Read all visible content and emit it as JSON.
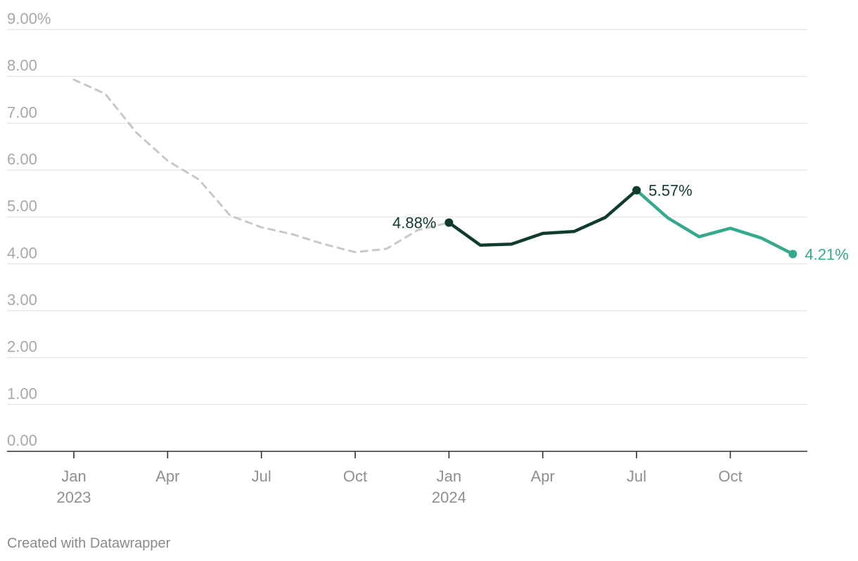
{
  "chart_data": {
    "type": "line",
    "ylim": [
      0,
      9
    ],
    "yticks": [
      {
        "value": 9,
        "label": "9.00%"
      },
      {
        "value": 8,
        "label": "8.00"
      },
      {
        "value": 7,
        "label": "7.00"
      },
      {
        "value": 6,
        "label": "6.00"
      },
      {
        "value": 5,
        "label": "5.00"
      },
      {
        "value": 4,
        "label": "4.00"
      },
      {
        "value": 3,
        "label": "3.00"
      },
      {
        "value": 2,
        "label": "2.00"
      },
      {
        "value": 1,
        "label": "1.00"
      },
      {
        "value": 0,
        "label": "0.00"
      }
    ],
    "xticks": [
      {
        "x": "2023-01",
        "month": "Jan",
        "year": "2023"
      },
      {
        "x": "2023-04",
        "month": "Apr",
        "year": ""
      },
      {
        "x": "2023-07",
        "month": "Jul",
        "year": ""
      },
      {
        "x": "2023-10",
        "month": "Oct",
        "year": ""
      },
      {
        "x": "2024-01",
        "month": "Jan",
        "year": "2024"
      },
      {
        "x": "2024-04",
        "month": "Apr",
        "year": ""
      },
      {
        "x": "2024-07",
        "month": "Jul",
        "year": ""
      },
      {
        "x": "2024-10",
        "month": "Oct",
        "year": ""
      }
    ],
    "grid": true,
    "series": [
      {
        "style": "dashed",
        "color": "#c8c8c8",
        "points": [
          {
            "x": "2023-01",
            "y": 7.93
          },
          {
            "x": "2023-02",
            "y": 7.63
          },
          {
            "x": "2023-03",
            "y": 6.8
          },
          {
            "x": "2023-04",
            "y": 6.2
          },
          {
            "x": "2023-05",
            "y": 5.8
          },
          {
            "x": "2023-06",
            "y": 5.03
          },
          {
            "x": "2023-07",
            "y": 4.78
          },
          {
            "x": "2023-08",
            "y": 4.63
          },
          {
            "x": "2023-09",
            "y": 4.42
          },
          {
            "x": "2023-10",
            "y": 4.25
          },
          {
            "x": "2023-11",
            "y": 4.32
          },
          {
            "x": "2023-12",
            "y": 4.72
          },
          {
            "x": "2024-01",
            "y": 4.88
          }
        ]
      },
      {
        "style": "solid",
        "color": "#0f3d2a",
        "points": [
          {
            "x": "2024-01",
            "y": 4.88
          },
          {
            "x": "2024-02",
            "y": 4.4
          },
          {
            "x": "2024-03",
            "y": 4.42
          },
          {
            "x": "2024-04",
            "y": 4.65
          },
          {
            "x": "2024-05",
            "y": 4.69
          },
          {
            "x": "2024-06",
            "y": 4.99
          },
          {
            "x": "2024-07",
            "y": 5.57
          }
        ]
      },
      {
        "style": "solid",
        "color": "#35a98d",
        "points": [
          {
            "x": "2024-07",
            "y": 5.57
          },
          {
            "x": "2024-08",
            "y": 4.98
          },
          {
            "x": "2024-09",
            "y": 4.58
          },
          {
            "x": "2024-10",
            "y": 4.76
          },
          {
            "x": "2024-11",
            "y": 4.55
          },
          {
            "x": "2024-12",
            "y": 4.21
          }
        ]
      }
    ],
    "annotations": [
      {
        "x": "2024-01",
        "y": 4.88,
        "text": "4.88%",
        "color": "#0f3d2a",
        "anchor": "left"
      },
      {
        "x": "2024-07",
        "y": 5.57,
        "text": "5.57%",
        "color": "#0f3d2a",
        "anchor": "right"
      },
      {
        "x": "2024-12",
        "y": 4.21,
        "text": "4.21%",
        "color": "#35a98d",
        "anchor": "right"
      }
    ]
  },
  "footer": {
    "credit": "Created with Datawrapper"
  }
}
